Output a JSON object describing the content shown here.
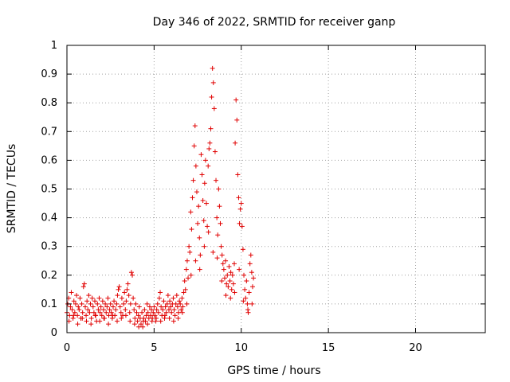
{
  "chart_data": {
    "type": "scatter",
    "title": "Day 346 of 2022, SRMTID for receiver ganp",
    "xlabel": "GPS time / hours",
    "ylabel": "SRMTID / TECUs",
    "xlim": [
      0,
      24
    ],
    "ylim": [
      0,
      1
    ],
    "xticks": [
      0,
      5,
      10,
      15,
      20
    ],
    "xtick_labels": [
      "0",
      "5",
      "10",
      "15",
      "20"
    ],
    "yticks": [
      0,
      0.1,
      0.2,
      0.3,
      0.4,
      0.5,
      0.6,
      0.7,
      0.8,
      0.9,
      1
    ],
    "ytick_labels": [
      "0",
      "0.1",
      "0.2",
      "0.3",
      "0.4",
      "0.5",
      "0.6",
      "0.7",
      "0.8",
      "0.9",
      "1"
    ],
    "grid": true,
    "marker": "+",
    "marker_color": "#e00000",
    "series": [
      {
        "name": "SRMTID",
        "points": [
          [
            0.0,
            0.07
          ],
          [
            0.05,
            0.1
          ],
          [
            0.1,
            0.12
          ],
          [
            0.15,
            0.06
          ],
          [
            0.2,
            0.09
          ],
          [
            0.25,
            0.14
          ],
          [
            0.3,
            0.08
          ],
          [
            0.35,
            0.05
          ],
          [
            0.4,
            0.11
          ],
          [
            0.45,
            0.07
          ],
          [
            0.5,
            0.1
          ],
          [
            0.55,
            0.13
          ],
          [
            0.6,
            0.06
          ],
          [
            0.65,
            0.09
          ],
          [
            0.7,
            0.08
          ],
          [
            0.75,
            0.12
          ],
          [
            0.8,
            0.05
          ],
          [
            0.85,
            0.1
          ],
          [
            0.9,
            0.07
          ],
          [
            0.95,
            0.16
          ],
          [
            1.0,
            0.17
          ],
          [
            1.05,
            0.09
          ],
          [
            1.1,
            0.06
          ],
          [
            1.15,
            0.11
          ],
          [
            1.2,
            0.08
          ],
          [
            1.25,
            0.13
          ],
          [
            1.3,
            0.07
          ],
          [
            1.35,
            0.1
          ],
          [
            1.4,
            0.05
          ],
          [
            1.45,
            0.12
          ],
          [
            1.5,
            0.09
          ],
          [
            1.55,
            0.07
          ],
          [
            1.6,
            0.11
          ],
          [
            1.65,
            0.06
          ],
          [
            1.7,
            0.04
          ],
          [
            1.75,
            0.1
          ],
          [
            1.8,
            0.08
          ],
          [
            1.85,
            0.12
          ],
          [
            1.9,
            0.07
          ],
          [
            1.95,
            0.09
          ],
          [
            2.0,
            0.06
          ],
          [
            2.05,
            0.11
          ],
          [
            2.1,
            0.08
          ],
          [
            2.15,
            0.05
          ],
          [
            2.2,
            0.1
          ],
          [
            2.25,
            0.07
          ],
          [
            2.3,
            0.09
          ],
          [
            2.35,
            0.12
          ],
          [
            2.4,
            0.06
          ],
          [
            2.45,
            0.08
          ],
          [
            2.5,
            0.1
          ],
          [
            2.55,
            0.07
          ],
          [
            2.6,
            0.05
          ],
          [
            2.65,
            0.09
          ],
          [
            2.7,
            0.11
          ],
          [
            2.75,
            0.06
          ],
          [
            2.8,
            0.08
          ],
          [
            2.85,
            0.1
          ],
          [
            2.9,
            0.13
          ],
          [
            2.95,
            0.15
          ],
          [
            3.0,
            0.16
          ],
          [
            3.05,
            0.09
          ],
          [
            3.1,
            0.07
          ],
          [
            3.15,
            0.12
          ],
          [
            3.2,
            0.06
          ],
          [
            3.25,
            0.1
          ],
          [
            3.3,
            0.14
          ],
          [
            3.35,
            0.08
          ],
          [
            3.4,
            0.11
          ],
          [
            3.45,
            0.15
          ],
          [
            3.5,
            0.17
          ],
          [
            3.55,
            0.13
          ],
          [
            3.6,
            0.07
          ],
          [
            3.65,
            0.1
          ],
          [
            3.7,
            0.21
          ],
          [
            3.75,
            0.2
          ],
          [
            3.8,
            0.12
          ],
          [
            3.85,
            0.08
          ],
          [
            3.9,
            0.05
          ],
          [
            3.95,
            0.1
          ],
          [
            4.0,
            0.07
          ],
          [
            4.05,
            0.04
          ],
          [
            4.1,
            0.06
          ],
          [
            4.15,
            0.09
          ],
          [
            4.2,
            0.05
          ],
          [
            4.25,
            0.03
          ],
          [
            4.3,
            0.07
          ],
          [
            4.35,
            0.02
          ],
          [
            4.4,
            0.05
          ],
          [
            4.45,
            0.08
          ],
          [
            4.5,
            0.04
          ],
          [
            4.55,
            0.06
          ],
          [
            4.6,
            0.1
          ],
          [
            4.65,
            0.07
          ],
          [
            4.7,
            0.05
          ],
          [
            4.75,
            0.09
          ],
          [
            4.8,
            0.06
          ],
          [
            4.85,
            0.08
          ],
          [
            4.9,
            0.05
          ],
          [
            4.95,
            0.07
          ],
          [
            5.0,
            0.09
          ],
          [
            5.05,
            0.06
          ],
          [
            5.1,
            0.04
          ],
          [
            5.15,
            0.08
          ],
          [
            5.2,
            0.1
          ],
          [
            5.25,
            0.07
          ],
          [
            5.3,
            0.12
          ],
          [
            5.35,
            0.14
          ],
          [
            5.4,
            0.09
          ],
          [
            5.45,
            0.06
          ],
          [
            5.5,
            0.08
          ],
          [
            5.55,
            0.11
          ],
          [
            5.6,
            0.05
          ],
          [
            5.65,
            0.09
          ],
          [
            5.7,
            0.07
          ],
          [
            5.75,
            0.1
          ],
          [
            5.8,
            0.13
          ],
          [
            5.85,
            0.08
          ],
          [
            5.9,
            0.11
          ],
          [
            5.95,
            0.09
          ],
          [
            6.0,
            0.07
          ],
          [
            6.05,
            0.1
          ],
          [
            6.1,
            0.12
          ],
          [
            6.15,
            0.08
          ],
          [
            6.2,
            0.06
          ],
          [
            6.25,
            0.1
          ],
          [
            6.3,
            0.13
          ],
          [
            6.35,
            0.09
          ],
          [
            6.4,
            0.07
          ],
          [
            6.45,
            0.11
          ],
          [
            6.5,
            0.1
          ],
          [
            6.55,
            0.08
          ],
          [
            6.6,
            0.12
          ],
          [
            6.65,
            0.09
          ],
          [
            6.7,
            0.14
          ],
          [
            6.75,
            0.18
          ],
          [
            6.8,
            0.15
          ],
          [
            6.85,
            0.22
          ],
          [
            6.9,
            0.25
          ],
          [
            6.95,
            0.19
          ],
          [
            7.0,
            0.3
          ],
          [
            7.05,
            0.28
          ],
          [
            7.1,
            0.42
          ],
          [
            7.15,
            0.36
          ],
          [
            7.2,
            0.47
          ],
          [
            7.25,
            0.53
          ],
          [
            7.3,
            0.65
          ],
          [
            7.35,
            0.72
          ],
          [
            7.4,
            0.58
          ],
          [
            7.45,
            0.49
          ],
          [
            7.5,
            0.38
          ],
          [
            7.55,
            0.44
          ],
          [
            7.6,
            0.33
          ],
          [
            7.65,
            0.27
          ],
          [
            7.7,
            0.62
          ],
          [
            7.75,
            0.55
          ],
          [
            7.8,
            0.46
          ],
          [
            7.85,
            0.39
          ],
          [
            7.9,
            0.52
          ],
          [
            7.95,
            0.6
          ],
          [
            8.0,
            0.45
          ],
          [
            8.05,
            0.37
          ],
          [
            8.1,
            0.58
          ],
          [
            8.15,
            0.64
          ],
          [
            8.2,
            0.66
          ],
          [
            8.25,
            0.71
          ],
          [
            8.3,
            0.82
          ],
          [
            8.35,
            0.92
          ],
          [
            8.4,
            0.87
          ],
          [
            8.45,
            0.78
          ],
          [
            8.5,
            0.63
          ],
          [
            8.55,
            0.53
          ],
          [
            8.6,
            0.4
          ],
          [
            8.65,
            0.34
          ],
          [
            8.7,
            0.5
          ],
          [
            8.75,
            0.44
          ],
          [
            8.8,
            0.38
          ],
          [
            8.85,
            0.3
          ],
          [
            8.9,
            0.27
          ],
          [
            8.95,
            0.24
          ],
          [
            9.0,
            0.22
          ],
          [
            9.05,
            0.19
          ],
          [
            9.1,
            0.25
          ],
          [
            9.15,
            0.17
          ],
          [
            9.2,
            0.2
          ],
          [
            9.25,
            0.16
          ],
          [
            9.3,
            0.23
          ],
          [
            9.35,
            0.18
          ],
          [
            9.4,
            0.21
          ],
          [
            9.45,
            0.15
          ],
          [
            9.5,
            0.2
          ],
          [
            9.55,
            0.17
          ],
          [
            9.6,
            0.24
          ],
          [
            9.65,
            0.66
          ],
          [
            9.7,
            0.81
          ],
          [
            9.75,
            0.74
          ],
          [
            9.8,
            0.55
          ],
          [
            9.85,
            0.47
          ],
          [
            9.9,
            0.38
          ],
          [
            9.95,
            0.43
          ],
          [
            10.0,
            0.45
          ],
          [
            10.05,
            0.37
          ],
          [
            10.1,
            0.29
          ],
          [
            10.15,
            0.2
          ],
          [
            10.2,
            0.15
          ],
          [
            10.25,
            0.12
          ],
          [
            10.3,
            0.18
          ],
          [
            10.35,
            0.1
          ],
          [
            10.4,
            0.07
          ],
          [
            10.45,
            0.14
          ],
          [
            10.5,
            0.24
          ],
          [
            10.55,
            0.27
          ],
          [
            10.6,
            0.21
          ],
          [
            10.65,
            0.16
          ],
          [
            10.7,
            0.19
          ],
          [
            0.12,
            0.04
          ],
          [
            0.38,
            0.06
          ],
          [
            0.62,
            0.03
          ],
          [
            0.88,
            0.05
          ],
          [
            1.12,
            0.04
          ],
          [
            1.38,
            0.03
          ],
          [
            1.62,
            0.06
          ],
          [
            1.88,
            0.04
          ],
          [
            2.12,
            0.05
          ],
          [
            2.38,
            0.03
          ],
          [
            2.62,
            0.06
          ],
          [
            2.88,
            0.04
          ],
          [
            3.12,
            0.05
          ],
          [
            3.38,
            0.06
          ],
          [
            3.62,
            0.04
          ],
          [
            3.88,
            0.03
          ],
          [
            4.12,
            0.02
          ],
          [
            4.38,
            0.04
          ],
          [
            4.62,
            0.03
          ],
          [
            4.88,
            0.04
          ],
          [
            5.12,
            0.05
          ],
          [
            5.38,
            0.04
          ],
          [
            5.62,
            0.06
          ],
          [
            5.88,
            0.05
          ],
          [
            6.12,
            0.04
          ],
          [
            6.38,
            0.05
          ],
          [
            6.62,
            0.07
          ],
          [
            6.88,
            0.1
          ],
          [
            7.12,
            0.2
          ],
          [
            7.38,
            0.25
          ],
          [
            7.62,
            0.22
          ],
          [
            7.88,
            0.3
          ],
          [
            8.12,
            0.35
          ],
          [
            8.38,
            0.28
          ],
          [
            8.62,
            0.26
          ],
          [
            8.88,
            0.18
          ],
          [
            9.12,
            0.13
          ],
          [
            9.38,
            0.12
          ],
          [
            9.62,
            0.14
          ],
          [
            9.88,
            0.22
          ],
          [
            10.12,
            0.11
          ],
          [
            10.38,
            0.08
          ],
          [
            10.62,
            0.1
          ]
        ]
      }
    ]
  }
}
